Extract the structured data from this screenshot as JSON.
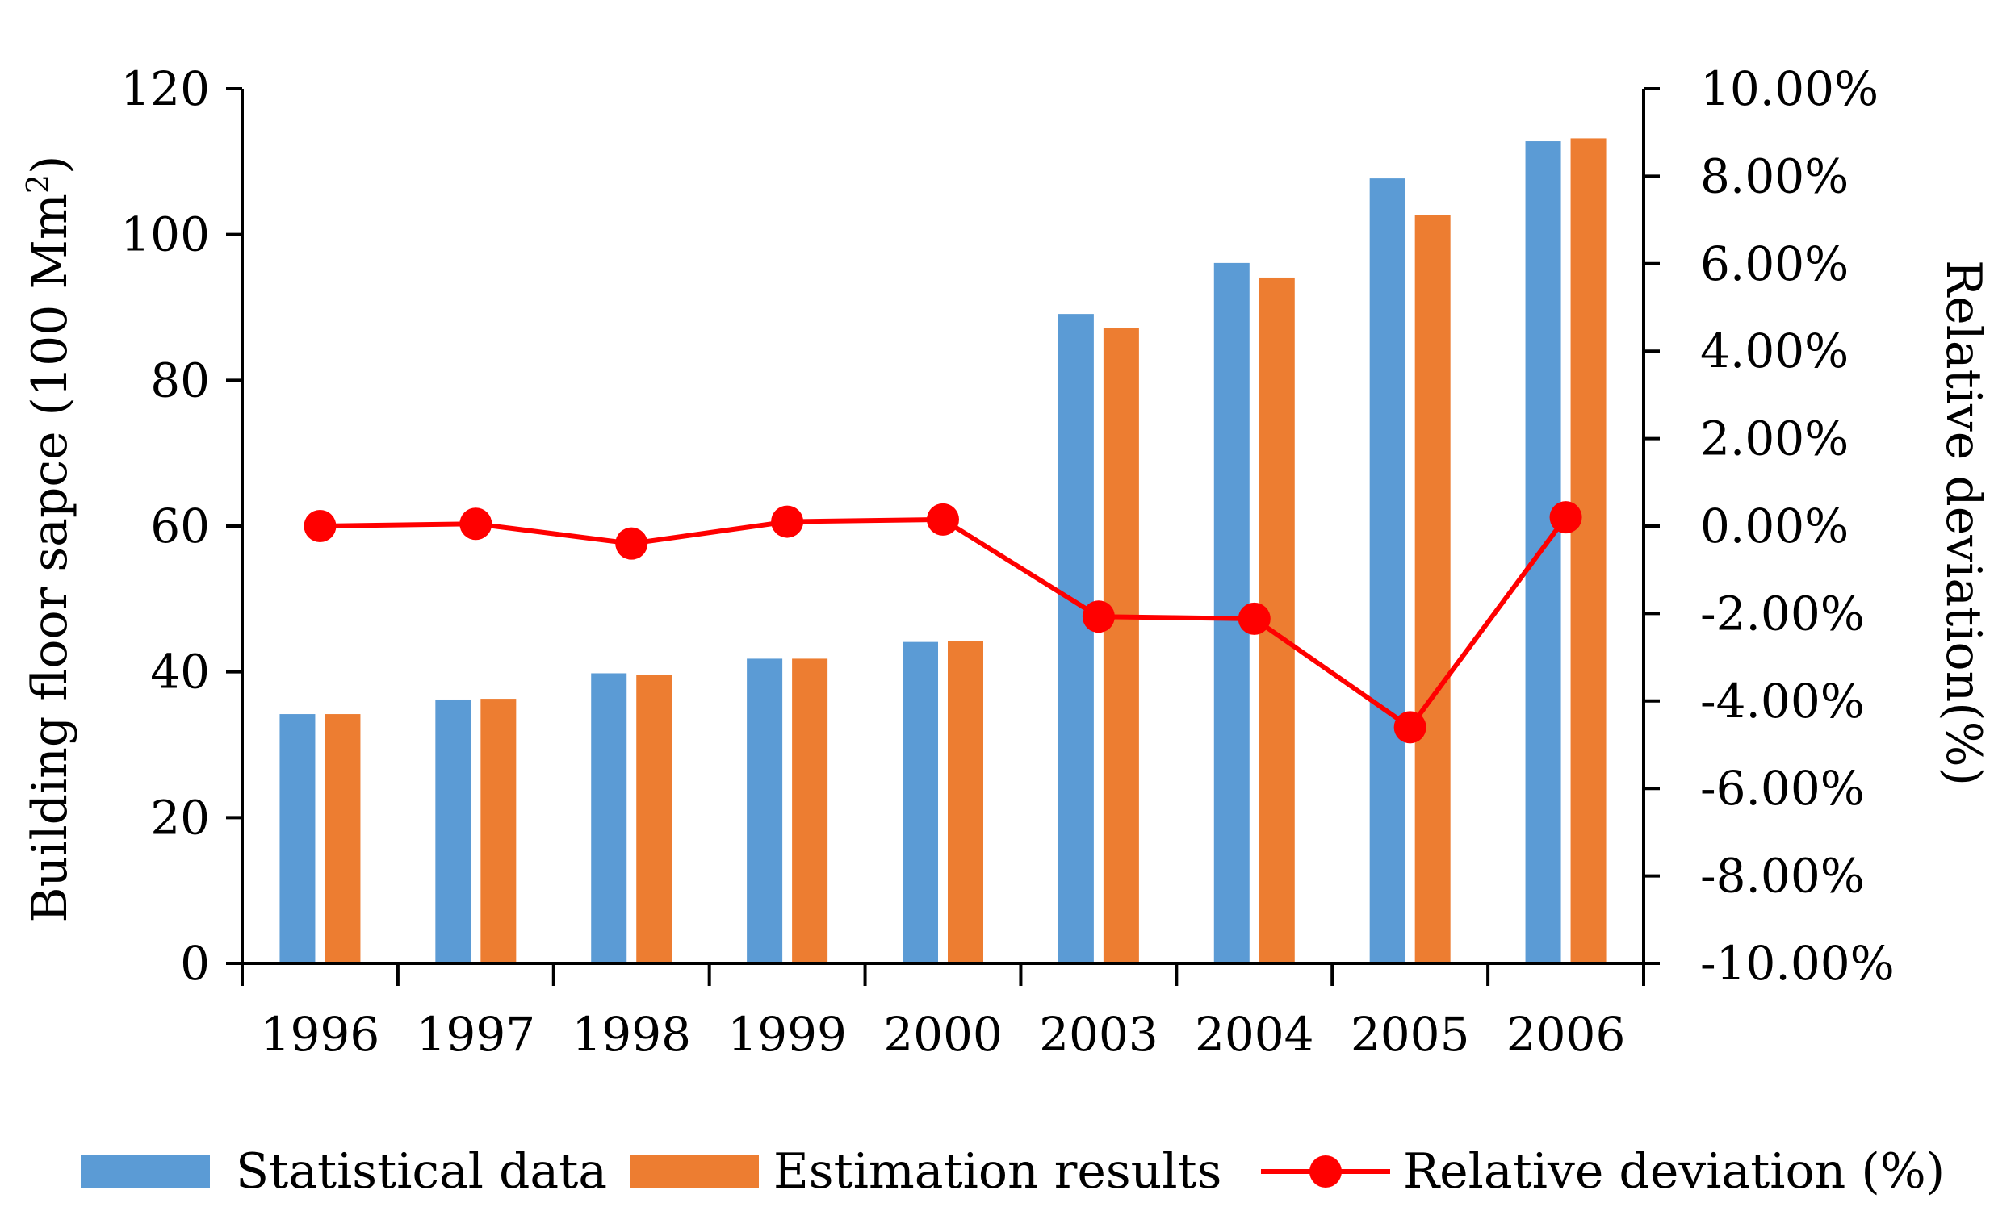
{
  "chart_data": {
    "type": "bar",
    "title": "",
    "xlabel": "",
    "ylabel": "Building floor sapce (100 Mm",
    "ylabel_sup": "2",
    "ylabel_close": ")",
    "y2label": "Relative deviation(%)",
    "ylim": [
      0,
      120
    ],
    "y2lim": [
      -10,
      10
    ],
    "yticks": [
      0,
      20,
      40,
      60,
      80,
      100,
      120
    ],
    "y2ticks": [
      "-10.00%",
      "-8.00%",
      "-6.00%",
      "-4.00%",
      "-2.00%",
      "0.00%",
      "2.00%",
      "4.00%",
      "6.00%",
      "8.00%",
      "10.00%"
    ],
    "categories": [
      "1996",
      "1997",
      "1998",
      "1999",
      "2000",
      "2003",
      "2004",
      "2005",
      "2006"
    ],
    "series": [
      {
        "name": "Statistical data",
        "type": "bar",
        "axis": "left",
        "color": "#5B9BD5",
        "values": [
          34.2,
          36.2,
          39.8,
          41.8,
          44.1,
          89.1,
          96.1,
          107.7,
          112.8
        ]
      },
      {
        "name": "Estimation results",
        "type": "bar",
        "axis": "left",
        "color": "#ED7D31",
        "values": [
          34.2,
          36.3,
          39.6,
          41.8,
          44.2,
          87.2,
          94.1,
          102.7,
          113.2
        ]
      },
      {
        "name": "Relative deviation (%)",
        "type": "line",
        "axis": "right",
        "color": "#FF0000",
        "values": [
          0.0,
          0.05,
          -0.4,
          0.1,
          0.15,
          -2.07,
          -2.12,
          -4.6,
          0.2
        ]
      }
    ],
    "legend": {
      "placement": "bottom",
      "entries": [
        "Statistical data",
        "Estimation results",
        "Relative deviation (%)"
      ]
    },
    "grid": false
  }
}
